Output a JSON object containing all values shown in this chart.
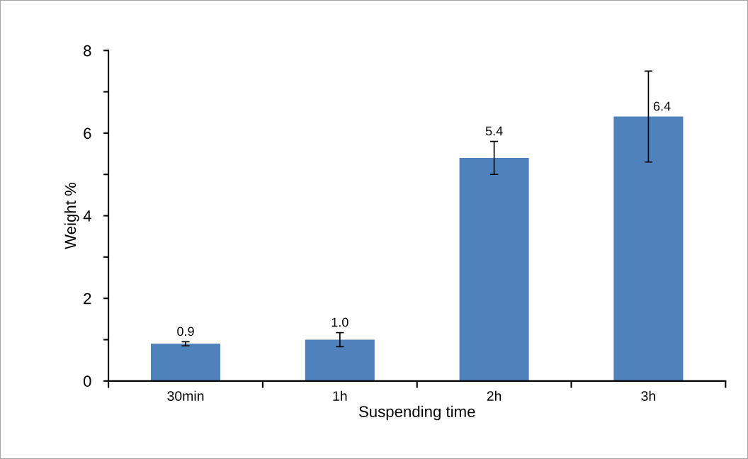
{
  "chart_data": {
    "type": "bar",
    "xlabel": "Suspending time",
    "ylabel": "Weight %",
    "categories": [
      "30min",
      "1h",
      "2h",
      "3h"
    ],
    "values": [
      0.9,
      1.0,
      5.4,
      6.4
    ],
    "errors": [
      0.05,
      0.17,
      0.4,
      1.1
    ],
    "color": "#4f81bd",
    "ylim": [
      0,
      8
    ],
    "yticks": [
      0,
      {
        "value": 1,
        "label": null
      },
      2,
      {
        "value": 3,
        "label": null
      },
      4,
      {
        "value": 5,
        "label": null
      },
      6,
      {
        "value": 7,
        "label": null
      },
      8
    ],
    "data_labels": true,
    "value_labels": [
      "0.9",
      "1.0",
      "5.4",
      "6.4"
    ],
    "grid": false,
    "legend": false
  }
}
